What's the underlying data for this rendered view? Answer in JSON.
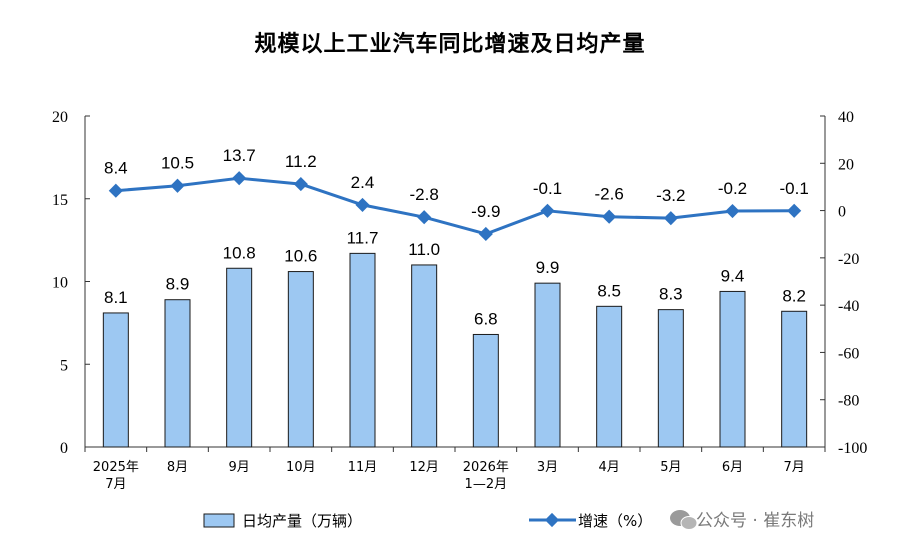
{
  "chart_data": {
    "type": "bar",
    "title": "规模以上工业汽车同比增速及日均产量",
    "categories": [
      [
        "2025年",
        "7月"
      ],
      [
        "8月"
      ],
      [
        "9月"
      ],
      [
        "10月"
      ],
      [
        "11月"
      ],
      [
        "12月"
      ],
      [
        "2026年",
        "1—2月"
      ],
      [
        "3月"
      ],
      [
        "4月"
      ],
      [
        "5月"
      ],
      [
        "6月"
      ],
      [
        "7月"
      ]
    ],
    "series": [
      {
        "name": "日均产量（万辆）",
        "type": "bar",
        "axis": "left",
        "values": [
          8.1,
          8.9,
          10.8,
          10.6,
          11.7,
          11.0,
          6.8,
          9.9,
          8.5,
          8.3,
          9.4,
          8.2
        ],
        "labels": [
          "8.1",
          "8.9",
          "10.8",
          "10.6",
          "11.7",
          "11.0",
          "6.8",
          "9.9",
          "8.5",
          "8.3",
          "9.4",
          "8.2"
        ],
        "color": "#9dc8f2"
      },
      {
        "name": "增速（%）",
        "type": "line",
        "axis": "right",
        "values": [
          8.4,
          10.5,
          13.7,
          11.2,
          2.4,
          -2.8,
          -9.9,
          -0.1,
          -2.6,
          -3.2,
          -0.2,
          -0.1
        ],
        "labels": [
          "8.4",
          "10.5",
          "13.7",
          "11.2",
          "2.4",
          "-2.8",
          "-9.9",
          "-0.1",
          "-2.6",
          "-3.2",
          "-0.2",
          "-0.1"
        ],
        "color": "#2e73c2"
      }
    ],
    "y_left": {
      "lim": [
        0,
        20
      ],
      "ticks": [
        "0",
        "5",
        "10",
        "15",
        "20"
      ]
    },
    "y_right": {
      "lim": [
        -100,
        40
      ],
      "ticks": [
        "-100",
        "-80",
        "-60",
        "-40",
        "-20",
        "0",
        "20",
        "40"
      ]
    },
    "grid": false,
    "legend_position": "bottom"
  },
  "watermark": {
    "text": "公众号 · 崔东树"
  }
}
